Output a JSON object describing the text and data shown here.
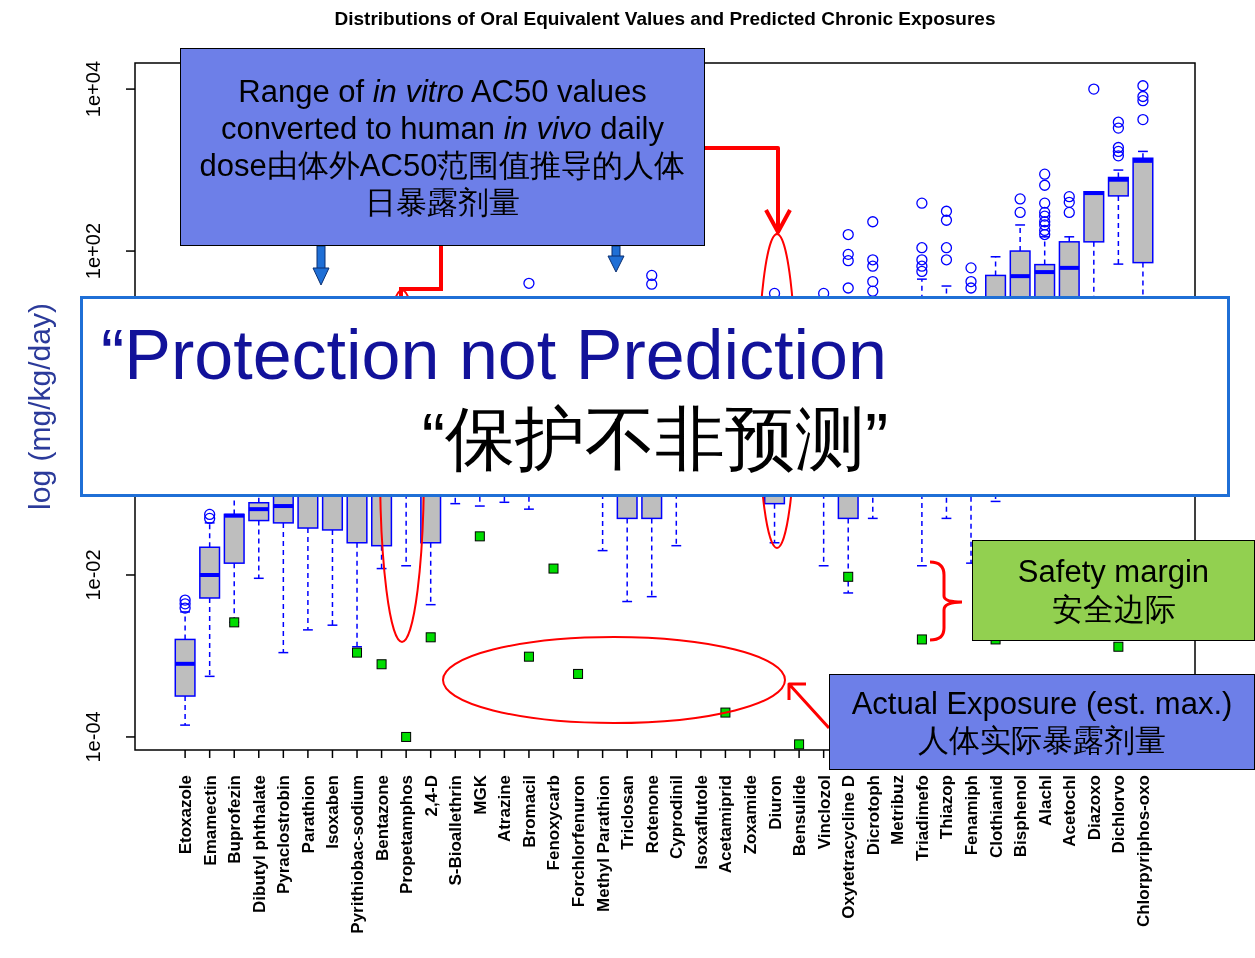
{
  "chart_data": {
    "type": "box",
    "title": "Distributions of Oral Equivalent Values and Predicted Chronic Exposures",
    "ylabel": "log (mg/kg/day)",
    "categories": [
      "Etoxazole",
      "Emamectin",
      "Buprofezin",
      "Dibutyl phthalate",
      "Pyraclostrobin",
      "Parathion",
      "Isoxaben",
      "Pyrithiobac-sodium",
      "Bentazone",
      "Propetamphos",
      "2,4-D",
      "S-Bioallethrin",
      "MGK",
      "Atrazine",
      "Bromacil",
      "Fenoxycarb",
      "Forchlorfenuron",
      "Methyl Parathion",
      "Triclosan",
      "Rotenone",
      "Cyprodinil",
      "Isoxaflutole",
      "Acetamiprid",
      "Zoxamide",
      "Diuron",
      "Bensulide",
      "Vinclozol",
      "Oxytetracycline D",
      "Dicrotoph",
      "Metribuz",
      "Triadimefo",
      "Thiazop",
      "Fenamiph",
      "Clothianid",
      "Bisphenol",
      "Alachl",
      "Acetochl",
      "Diazoxo",
      "Dichlorvo",
      "Chlorpyriphos-oxo"
    ],
    "log": "y",
    "ylim": [
      6.9e-05,
      21000
    ],
    "yticks": [
      {
        "value": 0.0001,
        "label": "1e-04"
      },
      {
        "value": 0.01,
        "label": "1e-02"
      },
      {
        "value": 100,
        "label": "1e+02"
      },
      {
        "value": 10000,
        "label": "1e+04"
      }
    ],
    "series": [
      {
        "color": "#0000ff",
        "boxes": [
          {
            "low": 0.00014,
            "q1": 0.00032,
            "median": 0.0008,
            "q3": 0.0016,
            "high": 0.0035,
            "outliers": [
              0.0049,
              0.0044,
              0.0039
            ]
          },
          {
            "low": 0.00056,
            "q1": 0.0052,
            "median": 0.01,
            "q3": 0.022,
            "high": 0.044,
            "outliers": [
              0.056,
              0.05
            ]
          },
          {
            "low": 0.0026,
            "q1": 0.014,
            "median": 0.054,
            "q3": 0.056,
            "high": 0.13
          },
          {
            "low": 0.0091,
            "q1": 0.047,
            "median": 0.065,
            "q3": 0.078,
            "high": 0.16
          },
          {
            "low": 0.0011,
            "q1": 0.044,
            "median": 0.071,
            "q3": 0.13,
            "high": 0.32
          },
          {
            "low": 0.0021,
            "q1": 0.038,
            "median": 0.1,
            "q3": 0.25,
            "high": 1
          },
          {
            "low": 0.0024,
            "q1": 0.036,
            "median": 0.13,
            "q3": 0.32,
            "high": 1.6
          },
          {
            "low": 0.0013,
            "q1": 0.025,
            "median": 0.13,
            "q3": 0.5,
            "high": 3.2
          },
          {
            "low": 0.012,
            "q1": 0.023,
            "median": 0.1,
            "q3": 0.4,
            "high": 2
          },
          {
            "low": 0.013,
            "q1": 0.13,
            "median": 0.32,
            "q3": 1,
            "high": 5
          },
          {
            "low": 0.0043,
            "q1": 0.025,
            "median": 0.13,
            "q3": 0.5,
            "high": 2.5
          },
          {
            "low": 0.076,
            "q1": 0.25,
            "median": 0.63,
            "q3": 1.6,
            "high": 7.9
          },
          {
            "low": 0.071,
            "q1": 0.2,
            "median": 0.5,
            "q3": 1.3,
            "high": 6.3
          },
          {
            "low": 0.079,
            "q1": 0.2,
            "median": 0.5,
            "q3": 1.3,
            "high": 6.3
          },
          {
            "low": 0.065,
            "q1": 0.2,
            "median": 0.5,
            "q3": 1.3,
            "high": 6.3,
            "outliers": [
              40
            ]
          },
          {
            "low": 0.1,
            "q1": 0.25,
            "median": 0.63,
            "q3": 1.6,
            "high": 7.9
          },
          {
            "low": 0.1,
            "q1": 0.32,
            "median": 0.79,
            "q3": 2,
            "high": 10
          },
          {
            "low": 0.02,
            "q1": 0.1,
            "median": 0.32,
            "q3": 1,
            "high": 5
          },
          {
            "low": 0.0047,
            "q1": 0.05,
            "median": 0.2,
            "q3": 0.63,
            "high": 4
          },
          {
            "low": 0.0054,
            "q1": 0.05,
            "median": 0.2,
            "q3": 0.63,
            "high": 4,
            "outliers": [
              50,
              39
            ]
          },
          {
            "low": 0.023,
            "q1": 0.13,
            "median": 0.4,
            "q3": 1.3,
            "high": 7.9
          },
          {
            "low": 0.1,
            "q1": 0.32,
            "median": 1,
            "q3": 3.2,
            "high": 13
          },
          {
            "low": 0.1,
            "q1": 0.25,
            "median": 0.79,
            "q3": 2.5,
            "high": 10
          },
          {
            "low": 0.1,
            "q1": 0.32,
            "median": 1,
            "q3": 3.2,
            "high": 13
          },
          {
            "low": 0.025,
            "q1": 0.076,
            "median": 0.32,
            "q3": 1.3,
            "high": 10,
            "outliers": [
              30
            ]
          },
          {
            "low": 0.1,
            "q1": 0.4,
            "median": 1.3,
            "q3": 4,
            "high": 16
          },
          {
            "low": 0.013,
            "q1": 0.13,
            "median": 0.5,
            "q3": 2,
            "high": 13,
            "outliers": [
              30
            ]
          },
          {
            "low": 0.006,
            "q1": 0.05,
            "median": 0.25,
            "q3": 1.3,
            "high": 10,
            "outliers": [
              160,
              91,
              76,
              35
            ]
          },
          {
            "low": 0.05,
            "q1": 0.25,
            "median": 1,
            "q3": 4,
            "high": 16,
            "outliers": [
              230,
              78,
              65,
              42,
              32
            ]
          },
          {
            "low": 0.1,
            "q1": 0.4,
            "median": 1.3,
            "q3": 5,
            "high": 20
          },
          {
            "low": 0.013,
            "q1": 0.1,
            "median": 0.5,
            "q3": 2.5,
            "high": 45,
            "outliers": [
              390,
              110,
              78,
              65,
              56
            ]
          },
          {
            "low": 0.05,
            "q1": 0.25,
            "median": 1,
            "q3": 5,
            "high": 37,
            "outliers": [
              310,
              240,
              110,
              78
            ]
          },
          {
            "low": 0.014,
            "q1": 0.2,
            "median": 1,
            "q3": 5,
            "high": 25,
            "outliers": [
              62,
              42,
              35
            ]
          },
          {
            "low": 0.081,
            "q1": 1,
            "median": 5,
            "q3": 50,
            "high": 85
          },
          {
            "low": 0.5,
            "q1": 5,
            "median": 49,
            "q3": 100,
            "high": 210,
            "outliers": [
              440,
              300
            ]
          },
          {
            "low": 0.5,
            "q1": 5,
            "median": 55,
            "q3": 68,
            "high": 150,
            "outliers": [
              890,
              650,
              390,
              300,
              270,
              230,
              210,
              180,
              160
            ]
          },
          {
            "low": 1,
            "q1": 10,
            "median": 62,
            "q3": 130,
            "high": 150,
            "outliers": [
              470,
              400,
              300
            ]
          },
          {
            "low": 5,
            "q1": 130,
            "median": 520,
            "q3": 540,
            "high": 540,
            "outliers": [
              10000
            ]
          },
          {
            "low": 69,
            "q1": 480,
            "median": 760,
            "q3": 810,
            "high": 1000,
            "outliers": [
              3900,
              3300,
              1900,
              1700,
              1500
            ]
          },
          {
            "low": 2,
            "q1": 72,
            "median": 1300,
            "q3": 1400,
            "high": 1700,
            "outliers": [
              11000,
              8100,
              7200,
              4200
            ]
          }
        ]
      },
      {
        "type": "scatter",
        "color": "#00dd00",
        "marker": "square",
        "values": [
          null,
          null,
          0.0026,
          null,
          null,
          null,
          null,
          0.0011,
          0.00079,
          0.0001,
          0.0017,
          null,
          0.03,
          null,
          0.00098,
          0.012,
          0.0006,
          null,
          null,
          null,
          null,
          null,
          0.0002,
          null,
          null,
          8.1e-05,
          null,
          0.0095,
          null,
          null,
          0.0016,
          null,
          null,
          0.0016,
          null,
          null,
          null,
          null,
          0.0013,
          null
        ]
      }
    ],
    "annotations": [
      "Range of *in vitro* AC50 values converted to human *in vivo* daily dose由体外AC50范围值推导的人体日暴露剂量",
      "“Protection not Prediction",
      "“保护不非预测”",
      "Safety margin 安全边际",
      "Actual Exposure (est. max.) 人体实际暴露剂量"
    ]
  }
}
